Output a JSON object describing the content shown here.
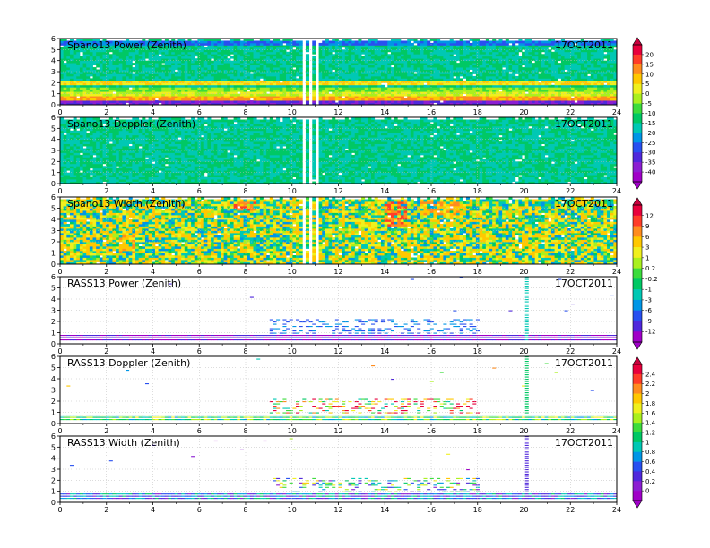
{
  "chart_data": [
    {
      "type": "heatmap",
      "title": "Spano13 Power (Zenith)",
      "date": "17OCT2011",
      "x": {
        "min": 0,
        "max": 24,
        "ticks": [
          0,
          2,
          4,
          6,
          8,
          10,
          12,
          14,
          16,
          18,
          20,
          22,
          24
        ]
      },
      "y": {
        "min": 0,
        "max": 6,
        "ticks": [
          0,
          1,
          2,
          3,
          4,
          5,
          6
        ]
      },
      "grid": true,
      "colorbar": "colorbar_1",
      "style": "dense",
      "base_level": -15,
      "features": [
        {
          "kind": "band",
          "y": 0.5,
          "level": 10
        },
        {
          "kind": "band",
          "y": 1.0,
          "level": 0
        },
        {
          "kind": "band",
          "y": 2.0,
          "level": 5
        },
        {
          "kind": "band",
          "y": 1.4,
          "level": -5
        },
        {
          "kind": "band",
          "y": 5.6,
          "level": -25
        },
        {
          "kind": "band",
          "y": 0.2,
          "level": -35
        },
        {
          "kind": "gaps",
          "x": [
            10.5,
            10.8,
            11.1
          ]
        }
      ]
    },
    {
      "type": "heatmap",
      "title": "Spano13 Doppler (Zenith)",
      "date": "17OCT2011",
      "x": {
        "min": 0,
        "max": 24,
        "ticks": [
          0,
          2,
          4,
          6,
          8,
          10,
          12,
          14,
          16,
          18,
          20,
          22,
          24
        ]
      },
      "y": {
        "min": 0,
        "max": 6,
        "ticks": [
          0,
          1,
          2,
          3,
          4,
          5,
          6
        ]
      },
      "grid": true,
      "colorbar": "colorbar_1",
      "style": "dense",
      "base_level": -15,
      "features": [
        {
          "kind": "gaps",
          "x": [
            10.5,
            10.8,
            11.1
          ]
        }
      ]
    },
    {
      "type": "heatmap",
      "title": "Spano13 Width (Zenith)",
      "date": "17OCT2011",
      "x": {
        "min": 0,
        "max": 24,
        "ticks": [
          0,
          2,
          4,
          6,
          8,
          10,
          12,
          14,
          16,
          18,
          20,
          22,
          24
        ]
      },
      "y": {
        "min": 0,
        "max": 6,
        "ticks": [
          0,
          1,
          2,
          3,
          4,
          5,
          6
        ]
      },
      "grid": true,
      "colorbar": "colorbar_2",
      "style": "dense",
      "base_level": 1,
      "features": [
        {
          "kind": "patch",
          "x": [
            7.5,
            8.5
          ],
          "y": [
            4.8,
            5.6
          ],
          "level": 9
        },
        {
          "kind": "patch",
          "x": [
            14,
            15
          ],
          "y": [
            3.5,
            5.5
          ],
          "level": 9
        },
        {
          "kind": "patch",
          "x": [
            15.5,
            17.2
          ],
          "y": [
            4.5,
            5.6
          ],
          "level": 6
        },
        {
          "kind": "patch",
          "x": [
            2.5,
            3.2
          ],
          "y": [
            1.0,
            2.5
          ],
          "level": 6
        },
        {
          "kind": "gaps",
          "x": [
            10.5,
            10.8,
            11.1
          ]
        }
      ]
    },
    {
      "type": "heatmap",
      "title": "RASS13 Power (Zenith)",
      "date": "17OCT2011",
      "x": {
        "min": 0,
        "max": 24,
        "ticks": [
          0,
          2,
          4,
          6,
          8,
          10,
          12,
          14,
          16,
          18,
          20,
          22,
          24
        ]
      },
      "y": {
        "min": 0,
        "max": 6,
        "ticks": [
          0,
          1,
          2,
          3,
          4,
          5,
          6
        ]
      },
      "grid": true,
      "colorbar": "colorbar_2",
      "style": "sparse",
      "base_level": -9,
      "features": [
        {
          "kind": "band",
          "y": 0.5,
          "level": -12
        },
        {
          "kind": "column",
          "x": 20.1,
          "y": [
            0.3,
            6.0
          ],
          "level": -1
        },
        {
          "kind": "cluster",
          "x": [
            9,
            18
          ],
          "y": [
            0.8,
            2.3
          ],
          "level": -6
        }
      ]
    },
    {
      "type": "heatmap",
      "title": "RASS13 Doppler (Zenith)",
      "date": "17OCT2011",
      "x": {
        "min": 0,
        "max": 24,
        "ticks": [
          0,
          2,
          4,
          6,
          8,
          10,
          12,
          14,
          16,
          18,
          20,
          22,
          24
        ]
      },
      "y": {
        "min": 0,
        "max": 6,
        "ticks": [
          0,
          1,
          2,
          3,
          4,
          5,
          6
        ]
      },
      "grid": true,
      "colorbar": "colorbar_3",
      "style": "sparse",
      "base_level": 1.2,
      "features": [
        {
          "kind": "band",
          "y": 0.5,
          "level": 1.2
        },
        {
          "kind": "column",
          "x": 20.1,
          "y": [
            0.3,
            6.0
          ],
          "level": 1.2
        },
        {
          "kind": "cluster",
          "x": [
            9,
            18
          ],
          "y": [
            0.8,
            2.3
          ],
          "level": 1.8
        }
      ]
    },
    {
      "type": "heatmap",
      "title": "RASS13 Width (Zenith)",
      "date": "17OCT2011",
      "x": {
        "min": 0,
        "max": 24,
        "ticks": [
          0,
          2,
          4,
          6,
          8,
          10,
          12,
          14,
          16,
          18,
          20,
          22,
          24
        ]
      },
      "y": {
        "min": 0,
        "max": 6,
        "ticks": [
          0,
          1,
          2,
          3,
          4,
          5,
          6
        ]
      },
      "grid": true,
      "colorbar": "colorbar_3",
      "style": "sparse",
      "base_level": 0.8,
      "features": [
        {
          "kind": "band",
          "y": 0.5,
          "level": 0.6
        },
        {
          "kind": "column",
          "x": 20.1,
          "y": [
            0.3,
            6.0
          ],
          "level": 0.4
        },
        {
          "kind": "cluster",
          "x": [
            9,
            18
          ],
          "y": [
            0.8,
            2.3
          ],
          "level": 1.0
        }
      ]
    }
  ],
  "colorbars": {
    "colorbar_1": {
      "labels": [
        "20",
        "15",
        "10",
        "5",
        "0",
        "-5",
        "-10",
        "-15",
        "-20",
        "-25",
        "-30",
        "-35",
        "-40"
      ],
      "values": [
        20,
        15,
        10,
        5,
        0,
        -5,
        -10,
        -15,
        -20,
        -25,
        -30,
        -35,
        -40
      ],
      "colors": [
        "#e8003c",
        "#ff3c28",
        "#ff8c1e",
        "#ffc800",
        "#f0f01e",
        "#aaf01e",
        "#3cdc3c",
        "#00c864",
        "#00c8b4",
        "#0096e6",
        "#2850f0",
        "#5028dc",
        "#8c1ed2",
        "#a000c8"
      ],
      "tip_colors": {
        "top": "#c8003c",
        "bottom": "#a000c8"
      }
    },
    "colorbar_2": {
      "labels": [
        "12",
        "9",
        "6",
        "3",
        "1",
        "0.2",
        "-0.2",
        "-1",
        "-3",
        "-6",
        "-9",
        "-12"
      ],
      "values": [
        12,
        9,
        6,
        3,
        1,
        0.2,
        -0.2,
        -1,
        -3,
        -6,
        -9,
        -12
      ],
      "colors": [
        "#e8003c",
        "#ff3c28",
        "#ff8c1e",
        "#ffc800",
        "#f0f01e",
        "#aaf01e",
        "#3cdc3c",
        "#00c864",
        "#00c8b4",
        "#0096e6",
        "#2850f0",
        "#5028dc",
        "#a000c8"
      ],
      "tip_colors": {
        "top": "#c8003c",
        "bottom": "#a000c8"
      }
    },
    "colorbar_3": {
      "labels": [
        "2.4",
        "2.2",
        "2",
        "1.8",
        "1.6",
        "1.4",
        "1.2",
        "1",
        "0.8",
        "0.6",
        "0.4",
        "0.2",
        "0"
      ],
      "values": [
        2.4,
        2.2,
        2,
        1.8,
        1.6,
        1.4,
        1.2,
        1,
        0.8,
        0.6,
        0.4,
        0.2,
        0
      ],
      "colors": [
        "#e8003c",
        "#ff3c28",
        "#ff8c1e",
        "#ffc800",
        "#f0f01e",
        "#aaf01e",
        "#3cdc3c",
        "#00c864",
        "#00c8b4",
        "#0096e6",
        "#2850f0",
        "#5028dc",
        "#8c1ed2",
        "#a000c8"
      ],
      "tip_colors": {
        "top": "#c8003c",
        "bottom": "#a000c8"
      }
    }
  }
}
